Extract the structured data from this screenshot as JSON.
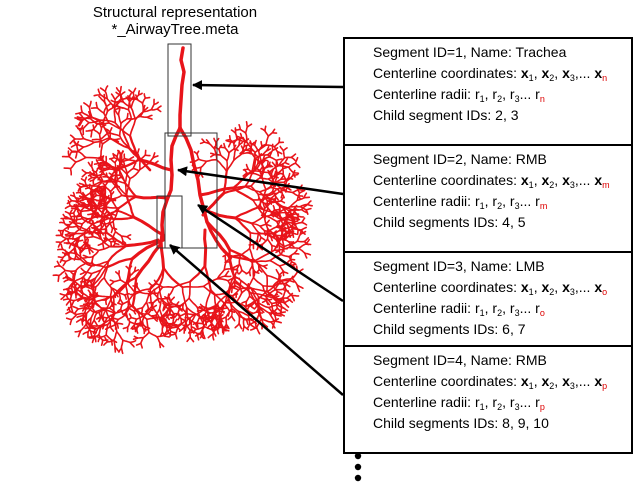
{
  "header": {
    "line1": "Structural representation",
    "line2": "*_AirwayTree.meta"
  },
  "labels": {
    "centerline_prefix": "Centerline coordinates:",
    "radii_prefix": "Centerline radii:",
    "x": "x",
    "r": "r",
    "sub1": "1",
    "sub2": "2",
    "sub3": "3",
    "sep": ",",
    "ellipsis": "..."
  },
  "segments": [
    {
      "id_line": "Segment ID=1, Name: Trachea",
      "last_sub": "n",
      "radii_last": "n",
      "children": "Child segment IDs: 2, 3"
    },
    {
      "id_line": "Segment ID=2, Name: RMB",
      "last_sub": "m",
      "radii_last": "m",
      "children": "Child segments IDs: 4, 5"
    },
    {
      "id_line": "Segment ID=3, Name: LMB",
      "last_sub": "o",
      "radii_last": "o",
      "children": "Child segments IDs: 6, 7"
    },
    {
      "id_line": "Segment ID=4, Name: RMB",
      "last_sub": "p",
      "radii_last": "p",
      "children": "Child segments IDs: 8, 9, 10"
    }
  ],
  "colors": {
    "airway": "#e8141a",
    "box": "#000000",
    "arrow": "#000000"
  }
}
